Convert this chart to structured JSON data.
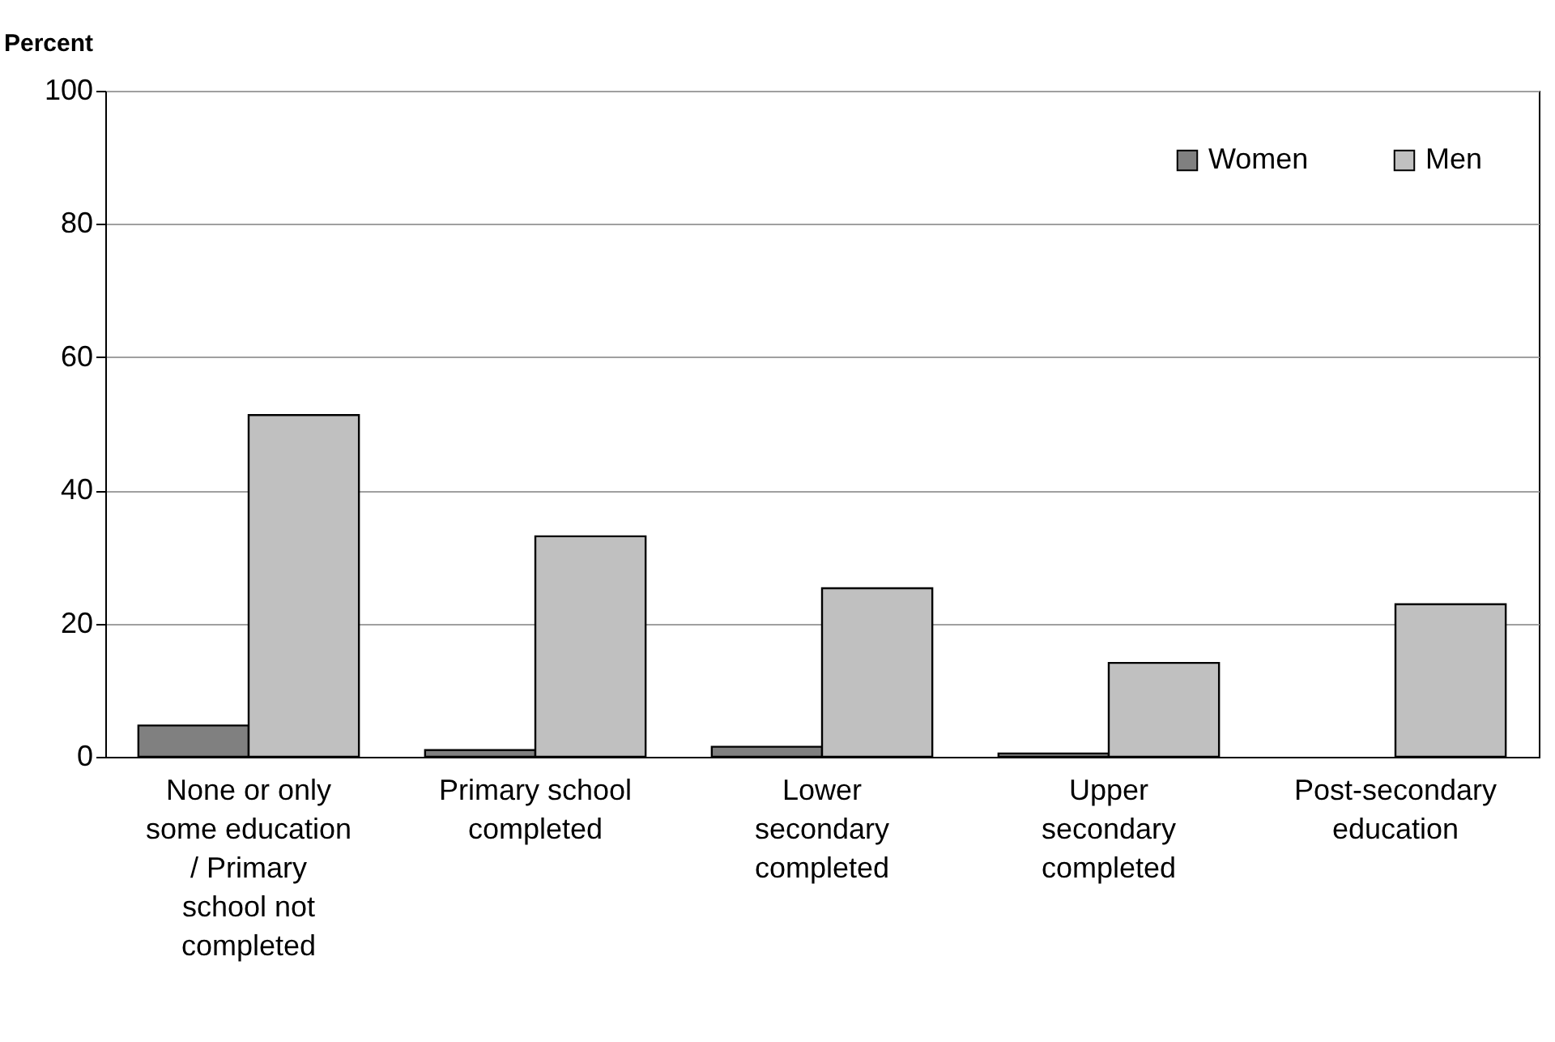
{
  "chart_data": {
    "type": "bar",
    "ylabel": "Percent",
    "categories": [
      "None or only some education / Primary school not completed",
      "Primary school completed",
      "Lower secondary completed",
      "Upper secondary completed",
      "Post-secondary education"
    ],
    "series": [
      {
        "name": "Women",
        "color": "#808080",
        "values": [
          4.7,
          1,
          1.5,
          0.5,
          null
        ]
      },
      {
        "name": "Men",
        "color": "#c0c0c0",
        "values": [
          51.3,
          33.1,
          25.3,
          14.1,
          22.9
        ]
      }
    ],
    "ylim": [
      0,
      100
    ],
    "yticks": [
      0,
      20,
      40,
      60,
      80,
      100
    ],
    "grid": "y",
    "legend": "top right"
  }
}
